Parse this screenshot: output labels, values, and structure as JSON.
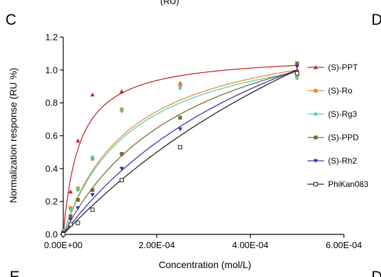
{
  "panels": {
    "main_letter": "C",
    "right_letter": "D",
    "bottom_left_letter": "E",
    "bottom_right_letter": "D",
    "top_clipped_text": "(RU)"
  },
  "chart_data": {
    "type": "scatter",
    "title": "",
    "xlabel": "Concentration (mol/L)",
    "ylabel": "Normalization response (RU %)",
    "xlim": [
      0,
      0.0006
    ],
    "ylim": [
      0,
      1.2
    ],
    "x_ticks": [
      0,
      0.0002,
      0.0004,
      0.0006
    ],
    "x_tick_labels": [
      "0.00E+00",
      "2.00E-04",
      "4.00E-04",
      "6.00E-04"
    ],
    "y_ticks": [
      0,
      0.2,
      0.4,
      0.6,
      0.8,
      1.0,
      1.2
    ],
    "y_tick_labels": [
      "0.0",
      "0.2",
      "0.4",
      "0.6",
      "0.8",
      "1.0",
      "1.2"
    ],
    "grid": false,
    "legend_position": "right",
    "x": [
      0,
      1.56e-05,
      3.125e-05,
      6.25e-05,
      0.000125,
      0.00025,
      0.0005
    ],
    "series": [
      {
        "name": "(S)-PPT",
        "marker": "triangle",
        "color": "#c0272d",
        "values": [
          0.02,
          0.26,
          0.57,
          0.85,
          0.87,
          0.92,
          1.0
        ],
        "fit": {
          "model": "hyperbolic",
          "bmax": 1.1,
          "kd": 3.5e-05
        }
      },
      {
        "name": "(S)-Ro",
        "marker": "square",
        "color": "#e8883a",
        "values": [
          0.02,
          0.16,
          0.28,
          0.46,
          0.76,
          0.91,
          0.97
        ],
        "fit": {
          "model": "hyperbolic",
          "bmax": 1.29,
          "kd": 0.000145
        }
      },
      {
        "name": "(S)-Rg3",
        "marker": "diamond",
        "color": "#4fd2a3",
        "values": [
          0.02,
          0.15,
          0.27,
          0.47,
          0.75,
          0.89,
          0.95
        ],
        "fit": {
          "model": "hyperbolic",
          "bmax": 1.28,
          "kd": 0.00015
        }
      },
      {
        "name": "(S)-PPD",
        "marker": "square",
        "color": "#7a6a2a",
        "values": [
          0.01,
          0.11,
          0.21,
          0.27,
          0.49,
          0.71,
          1.04
        ],
        "fit": {
          "model": "hyperbolic",
          "bmax": 1.55,
          "kd": 0.00028
        }
      },
      {
        "name": "(S)-Rh2",
        "marker": "triangle-down",
        "color": "#3b2fa8",
        "values": [
          0.01,
          0.09,
          0.16,
          0.24,
          0.4,
          0.64,
          1.02
        ],
        "fit": {
          "model": "hyperbolic",
          "bmax": 2.1,
          "kd": 0.00055
        }
      },
      {
        "name": "PhiKan083",
        "marker": "square-open",
        "color": "#222222",
        "values": [
          0.0,
          0.06,
          0.07,
          0.15,
          0.33,
          0.53,
          0.98
        ],
        "fit": {
          "model": "hyperbolic",
          "bmax": 3.0,
          "kd": 0.001
        }
      }
    ]
  }
}
